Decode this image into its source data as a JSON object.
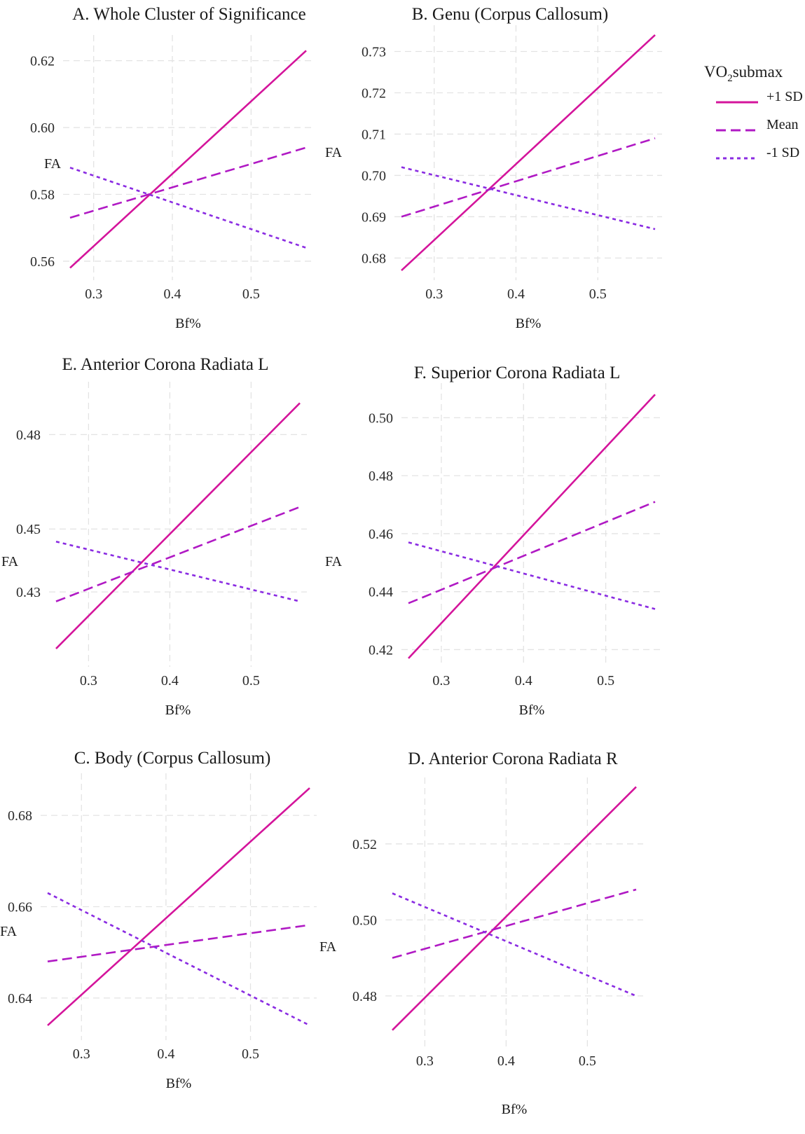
{
  "legend": {
    "title": "VO2submax",
    "title_main": "VO",
    "title_sub": "2",
    "title_rest": "submax",
    "entries": [
      {
        "label": "+1 SD",
        "color": "#d4149b",
        "style": "solid"
      },
      {
        "label": "Mean",
        "color": "#b019c4",
        "style": "dashed"
      },
      {
        "label": "-1 SD",
        "color": "#8a2be2",
        "style": "dotted"
      }
    ]
  },
  "chart_data": [
    {
      "type": "line",
      "title": "A.  Whole Cluster of Significance",
      "xlabel": "Bf%",
      "ylabel": "FA",
      "xlim": [
        0.27,
        0.57
      ],
      "ylim": [
        0.556,
        0.626
      ],
      "xticks": [
        "0.3",
        "0.4",
        "0.5"
      ],
      "yticks": [
        "0.56",
        "0.58",
        "0.60",
        "0.62"
      ],
      "x": [
        0.27,
        0.57
      ],
      "series": [
        {
          "name": "+1 SD",
          "values": [
            0.558,
            0.623
          ]
        },
        {
          "name": "Mean",
          "values": [
            0.573,
            0.594
          ]
        },
        {
          "name": "-1 SD",
          "values": [
            0.588,
            0.564
          ]
        }
      ]
    },
    {
      "type": "line",
      "title": "B. Genu (Corpus Callosum)",
      "xlabel": "Bf%",
      "ylabel": "FA",
      "xlim": [
        0.26,
        0.57
      ],
      "ylim": [
        0.676,
        0.735
      ],
      "xticks": [
        "0.3",
        "0.4",
        "0.5"
      ],
      "yticks": [
        "0.68",
        "0.69",
        "0.70",
        "0.71",
        "0.72",
        "0.73"
      ],
      "x": [
        0.26,
        0.57
      ],
      "series": [
        {
          "name": "+1 SD",
          "values": [
            0.677,
            0.734
          ]
        },
        {
          "name": "Mean",
          "values": [
            0.69,
            0.709
          ]
        },
        {
          "name": "-1 SD",
          "values": [
            0.702,
            0.687
          ]
        }
      ]
    },
    {
      "type": "line",
      "title": "E. Anterior Corona Radiata L",
      "xlabel": "Bf%",
      "ylabel": "FA",
      "xlim": [
        0.26,
        0.56
      ],
      "ylim": [
        0.408,
        0.495
      ],
      "xticks": [
        "0.3",
        "0.4",
        "0.5"
      ],
      "yticks": [
        "0.43",
        "0.45",
        "0.48"
      ],
      "x": [
        0.26,
        0.56
      ],
      "series": [
        {
          "name": "+1 SD",
          "values": [
            0.412,
            0.49
          ]
        },
        {
          "name": "Mean",
          "values": [
            0.427,
            0.457
          ]
        },
        {
          "name": "-1 SD",
          "values": [
            0.446,
            0.427
          ]
        }
      ]
    },
    {
      "type": "line",
      "title": "F. Superior Corona Radiata L",
      "xlabel": "Bf%",
      "ylabel": "FA",
      "xlim": [
        0.26,
        0.56
      ],
      "ylim": [
        0.416,
        0.51
      ],
      "xticks": [
        "0.3",
        "0.4",
        "0.5"
      ],
      "yticks": [
        "0.42",
        "0.44",
        "0.46",
        "0.48",
        "0.50"
      ],
      "x": [
        0.26,
        0.56
      ],
      "series": [
        {
          "name": "+1 SD",
          "values": [
            0.417,
            0.508
          ]
        },
        {
          "name": "Mean",
          "values": [
            0.436,
            0.471
          ]
        },
        {
          "name": "-1 SD",
          "values": [
            0.457,
            0.434
          ]
        }
      ]
    },
    {
      "type": "line",
      "title": "C. Body (Corpus Callosum)",
      "xlabel": "Bf%",
      "ylabel": "FA",
      "xlim": [
        0.26,
        0.57
      ],
      "ylim": [
        0.632,
        0.688
      ],
      "xticks": [
        "0.3",
        "0.4",
        "0.5"
      ],
      "yticks": [
        "0.64",
        "0.66",
        "0.68"
      ],
      "x": [
        0.26,
        0.57
      ],
      "series": [
        {
          "name": "+1 SD",
          "values": [
            0.634,
            0.686
          ]
        },
        {
          "name": "Mean",
          "values": [
            0.648,
            0.656
          ]
        },
        {
          "name": "-1 SD",
          "values": [
            0.663,
            0.634
          ]
        }
      ]
    },
    {
      "type": "line",
      "title": "D. Anterior Corona Radiata R",
      "xlabel": "Bf%",
      "ylabel": "FA",
      "xlim": [
        0.26,
        0.56
      ],
      "ylim": [
        0.468,
        0.536
      ],
      "xticks": [
        "0.3",
        "0.4",
        "0.5"
      ],
      "yticks": [
        "0.48",
        "0.50",
        "0.52"
      ],
      "x": [
        0.26,
        0.56
      ],
      "series": [
        {
          "name": "+1 SD",
          "values": [
            0.471,
            0.535
          ]
        },
        {
          "name": "Mean",
          "values": [
            0.49,
            0.508
          ]
        },
        {
          "name": "-1 SD",
          "values": [
            0.507,
            0.48
          ]
        }
      ]
    }
  ]
}
